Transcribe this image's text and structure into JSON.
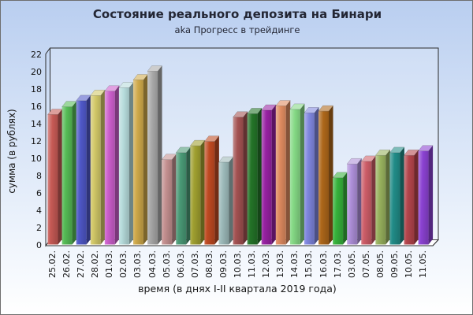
{
  "chart_data": {
    "type": "bar",
    "style": "3d-column",
    "title": "Состояние реального депозита на Бинари",
    "subtitle": "aka Прогресс в трейдинге",
    "xlabel": "время (в днях I-II квартала 2019 года)",
    "ylabel": "сумма (в рублях)",
    "ylim": [
      0,
      22
    ],
    "ytick_step": 2,
    "grid": false,
    "legend": "none",
    "categories": [
      "25.02.",
      "26.02.",
      "27.02.",
      "28.02.",
      "01.03.",
      "02.03.",
      "03.03.",
      "04.03.",
      "05.03.",
      "06.03.",
      "07.03.",
      "08.03.",
      "09.03.",
      "10.03.",
      "11.03.",
      "12.03.",
      "13.03.",
      "14.03.",
      "15.03.",
      "16.03.",
      "17.03.",
      "03.05.",
      "07.05.",
      "08.05.",
      "09.05.",
      "10.05.",
      "11.05."
    ],
    "values": [
      15.0,
      15.9,
      16.6,
      17.2,
      17.7,
      18.1,
      19.0,
      20.0,
      9.8,
      10.6,
      11.4,
      11.9,
      9.5,
      14.7,
      15.1,
      15.5,
      16.0,
      15.6,
      15.2,
      15.4,
      7.7,
      9.3,
      9.6,
      10.3,
      10.6,
      10.3,
      10.8
    ],
    "bar_colors": [
      "#c65a55",
      "#55bb55",
      "#4f58c8",
      "#d2c868",
      "#cc5ecc",
      "#b7dcdc",
      "#cfa94a",
      "#a9a9a9",
      "#c49090",
      "#4a9a76",
      "#a0a030",
      "#bf4a22",
      "#9dbaba",
      "#a35252",
      "#247428",
      "#9722a2",
      "#df8b60",
      "#85d985",
      "#7f86df",
      "#ad671a",
      "#36b23b",
      "#ae8fd9",
      "#cd5d68",
      "#98b25e",
      "#218c88",
      "#b4454c",
      "#8b42d2"
    ]
  },
  "colors": {
    "background_top": "#b9cef0",
    "background_bottom": "#ffffff",
    "frame": "#2b2b2b",
    "floor": "#ffffff",
    "title_text": "#232634",
    "axis_text": "#141414"
  }
}
